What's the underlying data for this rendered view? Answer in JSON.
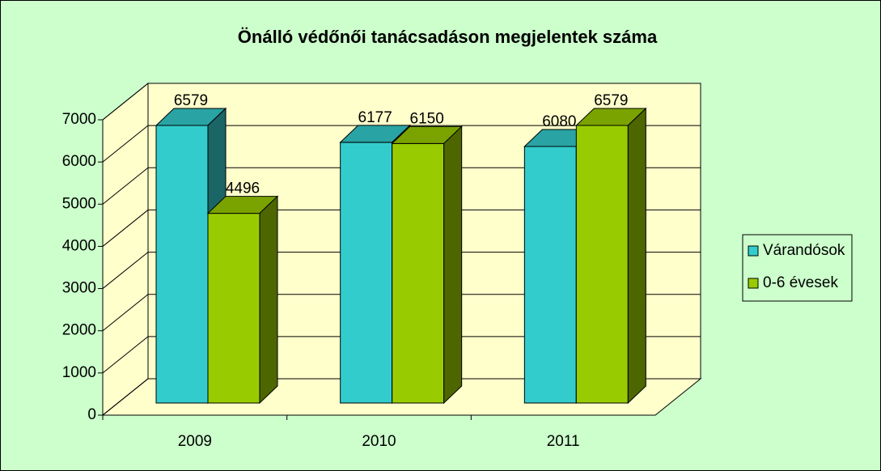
{
  "chart_data": {
    "type": "bar3d",
    "title": "Önálló védőnői tanácsadáson megjelentek száma",
    "categories": [
      "2009",
      "2010",
      "2011"
    ],
    "series": [
      {
        "name": "Várandósok",
        "color": "#33cccc",
        "values": [
          6579,
          6177,
          6080
        ]
      },
      {
        "name": "0-6 évesek",
        "color": "#99cc00",
        "values": [
          4496,
          6150,
          6579
        ]
      }
    ],
    "ylim": [
      0,
      7000
    ],
    "yticks": [
      0,
      1000,
      2000,
      3000,
      4000,
      5000,
      6000,
      7000
    ],
    "grid": true,
    "legend": "right"
  }
}
